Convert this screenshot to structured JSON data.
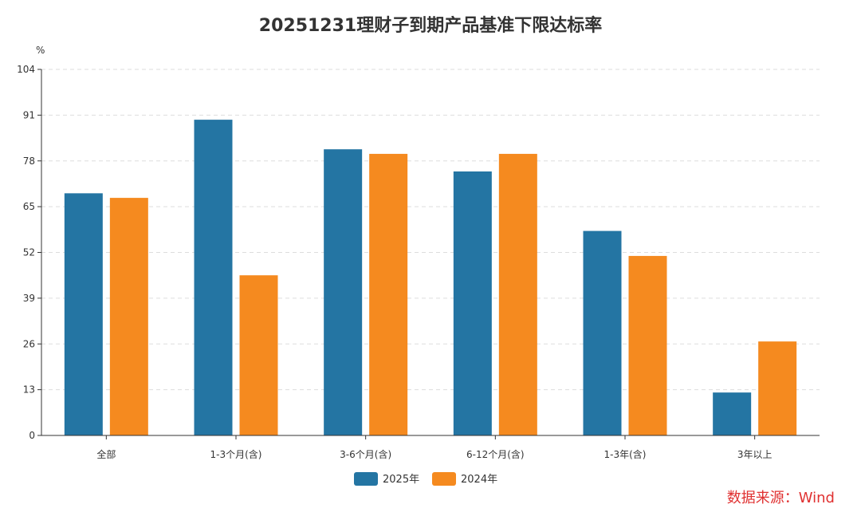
{
  "chart_data": {
    "type": "bar",
    "title": "20251231理财子到期产品基准下限达标率",
    "ylabel": "%",
    "xlabel": "",
    "ylim": [
      0,
      104
    ],
    "yticks": [
      0,
      13,
      26,
      39,
      52,
      65,
      78,
      91,
      104
    ],
    "grid": true,
    "legend_position": "bottom",
    "categories": [
      "全部",
      "1-3个月(含)",
      "3-6个月(含)",
      "6-12个月(含)",
      "1-3年(含)",
      "3年以上"
    ],
    "series": [
      {
        "name": "2025年",
        "color": "#2475a3",
        "values": [
          68.8,
          89.7,
          81.3,
          75.0,
          58.1,
          12.2
        ]
      },
      {
        "name": "2024年",
        "color": "#f58a1f",
        "values": [
          67.5,
          45.5,
          80.0,
          80.0,
          51.0,
          26.7
        ]
      }
    ]
  },
  "source_note": "数据来源：Wind"
}
